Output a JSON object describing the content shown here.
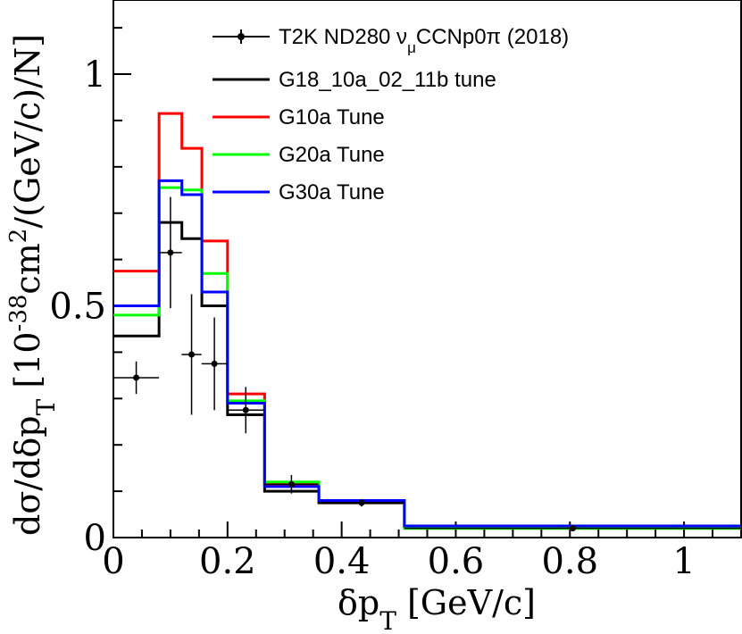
{
  "chart_data": {
    "type": "line",
    "title": "",
    "xlabel": "δp_T [GeV/c]",
    "xlabel_main": "δp",
    "xlabel_sub": "T",
    "xlabel_unit": " [GeV/c]",
    "ylabel": "dσ/dδp_T [10^-38 cm^2/(GeV/c)/N]",
    "ylabel_part1": "dσ/dδp",
    "ylabel_sub": "T",
    "ylabel_part2": " [10",
    "ylabel_sup": "-38",
    "ylabel_part3": "cm",
    "ylabel_sup2": "2",
    "ylabel_part4": "/(GeV/c)/N]",
    "xlim": [
      0,
      1.1
    ],
    "ylim": [
      0,
      1.16
    ],
    "xticks": [
      0,
      0.2,
      0.4,
      0.6,
      0.8,
      1
    ],
    "xtick_labels": [
      "0",
      "0.2",
      "0.4",
      "0.6",
      "0.8",
      "1"
    ],
    "yticks": [
      0,
      0.5,
      1
    ],
    "ytick_labels": [
      "0",
      "0.5",
      "1"
    ],
    "bin_edges": [
      0,
      0.08,
      0.12,
      0.155,
      0.2,
      0.265,
      0.36,
      0.51,
      1.1
    ],
    "data": {
      "name": "T2K ND280 ν_μCCNp0π (2018)",
      "legend_part1": "T2K ND280 ν",
      "legend_sub": "μ",
      "legend_part2": "CCNp0π (2018)",
      "x": [
        0.04,
        0.1,
        0.137,
        0.177,
        0.232,
        0.312,
        0.435,
        0.805
      ],
      "y": [
        0.345,
        0.615,
        0.395,
        0.375,
        0.275,
        0.115,
        0.075,
        0.02
      ],
      "xerr": [
        0.04,
        0.02,
        0.0175,
        0.0225,
        0.0325,
        0.0475,
        0.075,
        0.295
      ],
      "yerr": [
        0.035,
        0.12,
        0.13,
        0.1,
        0.05,
        0.02,
        0.008,
        0.003
      ],
      "color": "#000000"
    },
    "series": [
      {
        "name": "G18_10a_02_11b tune",
        "color": "#000000",
        "values": [
          0.435,
          0.68,
          0.645,
          0.5,
          0.265,
          0.1,
          0.075,
          0.02
        ]
      },
      {
        "name": "G10a Tune",
        "color": "#ff0000",
        "values": [
          0.575,
          0.915,
          0.84,
          0.64,
          0.31,
          0.115,
          0.08,
          0.025
        ]
      },
      {
        "name": "G20a Tune",
        "color": "#00ff00",
        "values": [
          0.48,
          0.755,
          0.75,
          0.57,
          0.295,
          0.12,
          0.08,
          0.02
        ]
      },
      {
        "name": "G30a Tune",
        "color": "#0000ff",
        "values": [
          0.5,
          0.77,
          0.74,
          0.53,
          0.29,
          0.11,
          0.08,
          0.025
        ]
      }
    ],
    "legend_position": "top-right"
  }
}
